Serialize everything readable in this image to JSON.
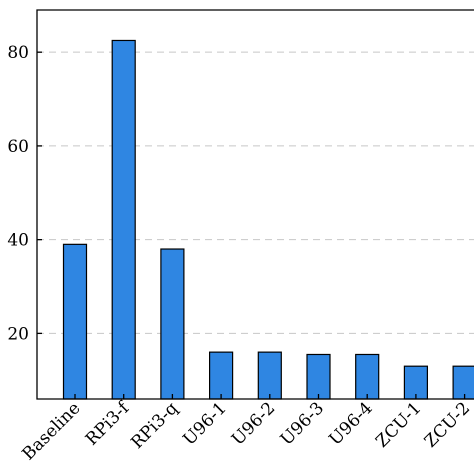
{
  "chart_data": {
    "type": "bar",
    "categories": [
      "Baseline",
      "RPi3-f",
      "RPi3-q",
      "U96-1",
      "U96-2",
      "U96-3",
      "U96-4",
      "ZCU-1",
      "ZCU-2"
    ],
    "values": [
      39,
      82.5,
      38,
      16,
      16,
      15.5,
      15.5,
      13,
      13
    ],
    "ylim": [
      6,
      89
    ],
    "yticks": [
      20,
      40,
      60,
      80
    ],
    "grid": "horizontal dashed",
    "bar_color": "#2f86e2",
    "title": "",
    "xlabel": "",
    "ylabel": ""
  }
}
